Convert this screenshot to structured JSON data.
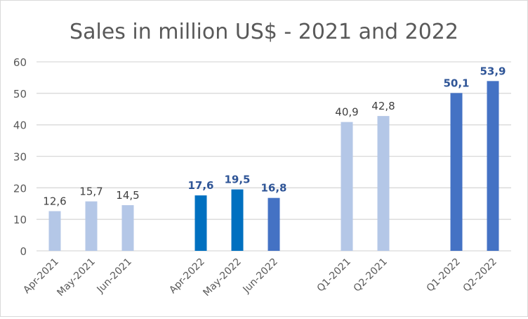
{
  "chart_data": {
    "type": "bar",
    "title": "Sales in million US$ - 2021 and 2022",
    "xlabel": "",
    "ylabel": "",
    "ylim": [
      0,
      60
    ],
    "yticks": [
      0,
      10,
      20,
      30,
      40,
      50,
      60
    ],
    "grid": true,
    "legend": "none",
    "categories": [
      "Apr-2021",
      "May-2021",
      "Jun-2021",
      "",
      "Apr-2022",
      "May-2022",
      "Jun-2022",
      "",
      "Q1-2021",
      "Q2-2021",
      "",
      "Q1-2022",
      "Q2-2022"
    ],
    "values": [
      12.6,
      15.7,
      14.5,
      null,
      17.6,
      19.5,
      16.8,
      null,
      40.9,
      42.8,
      null,
      50.1,
      53.9
    ],
    "data_labels": [
      "12,6",
      "15,7",
      "14,5",
      "",
      "17,6",
      "19,5",
      "16,8",
      "",
      "40,9",
      "42,8",
      "",
      "50,1",
      "53,9"
    ],
    "bar_colors": [
      "#B4C7E7",
      "#B4C7E7",
      "#B4C7E7",
      "",
      "#0070C0",
      "#0070C0",
      "#4472C4",
      "",
      "#B4C7E7",
      "#B4C7E7",
      "",
      "#4472C4",
      "#4472C4"
    ],
    "label_bold": [
      false,
      false,
      false,
      false,
      true,
      true,
      true,
      false,
      false,
      false,
      false,
      true,
      true
    ],
    "colors": {
      "label_normal": "#404040",
      "label_bold": "#2F5597",
      "axis_text": "#595959",
      "grid": "#D9D9D9"
    }
  }
}
